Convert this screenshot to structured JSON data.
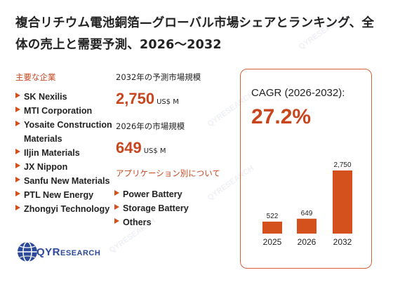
{
  "title": "複合リチウム電池銅箔—グローバル市場シェアとランキング、全体の売上と需要予測、2026～2032",
  "companies_label": "主要な企業",
  "companies": [
    "SK Nexilis",
    "MTI Corporation",
    "Yosaite Construction Materials",
    "Iljin Materials",
    "JX Nippon",
    "Sanfu New Materials",
    "PTL New Energy",
    "Zhongyi Technology"
  ],
  "market_2032_label": "2032年の予測市場規模",
  "market_2032_value": "2,750",
  "market_2026_label": "2026年の市場規模",
  "market_2026_value": "649",
  "unit": "US$ M",
  "applications_label": "アプリケーション別について",
  "applications": [
    "Power Battery",
    "Storage Battery",
    "Others"
  ],
  "cagr_label": "CAGR (2026-2032):",
  "cagr_value": "27.2%",
  "colors": {
    "accent": "#c8461e",
    "bar": "#d4511e",
    "brand": "#2d4a9a"
  },
  "logo": {
    "text_big": "QYR",
    "text_small": "ESEARCH",
    "icon": "globe-icon"
  },
  "watermark_text": "QYRESEARCH",
  "chart_data": {
    "type": "bar",
    "categories": [
      "2025",
      "2026",
      "2032"
    ],
    "values": [
      522,
      649,
      2750
    ],
    "data_labels": [
      "522",
      "649",
      "2,750"
    ],
    "ylim": [
      0,
      2750
    ]
  }
}
